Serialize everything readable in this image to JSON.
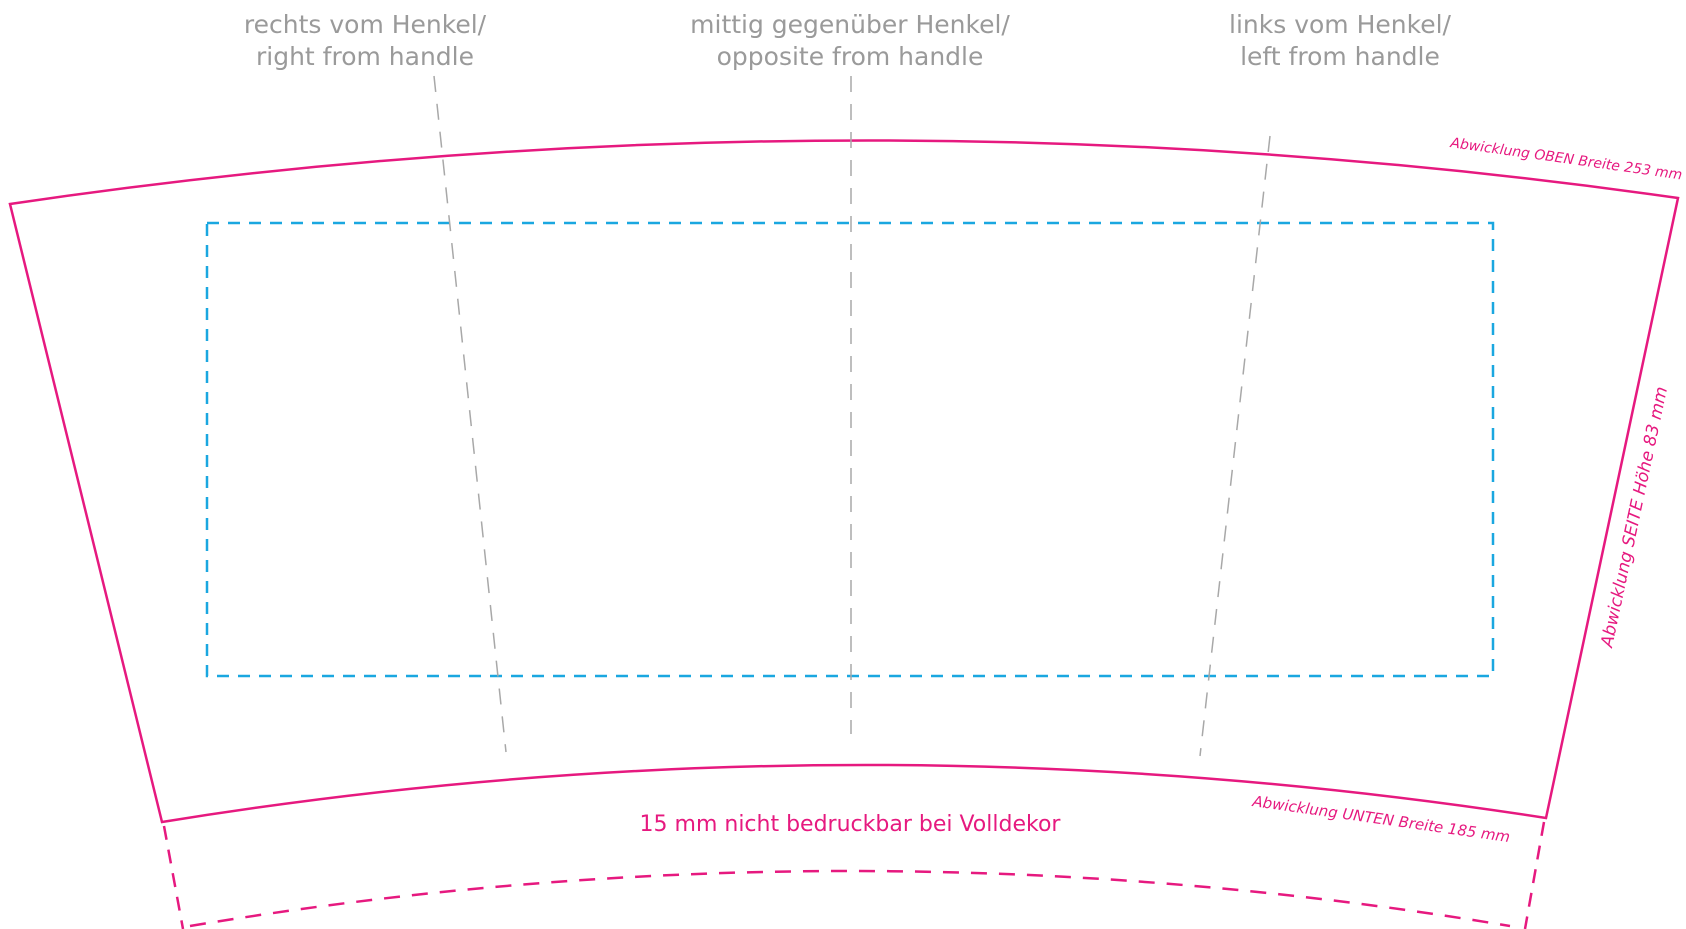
{
  "positions": {
    "right": {
      "line1": "rechts vom Henkel/",
      "line2": "right from handle"
    },
    "center": {
      "line1": "mittig gegenüber Henkel/",
      "line2": "opposite from handle"
    },
    "left": {
      "line1": "links vom Henkel/",
      "line2": "left from handle"
    }
  },
  "dimensions": {
    "top": "Abwicklung OBEN Breite 253 mm",
    "side": "Abwicklung SEITE Höhe 83 mm",
    "bottom": "Abwicklung UNTEN Breite 185 mm"
  },
  "note": "15 mm nicht bedruckbar bei Volldekor",
  "colors": {
    "outline": "#e6197f",
    "print_area": "#1aa7e0",
    "guide": "#a8a8a8",
    "label": "#9a9a9a"
  }
}
